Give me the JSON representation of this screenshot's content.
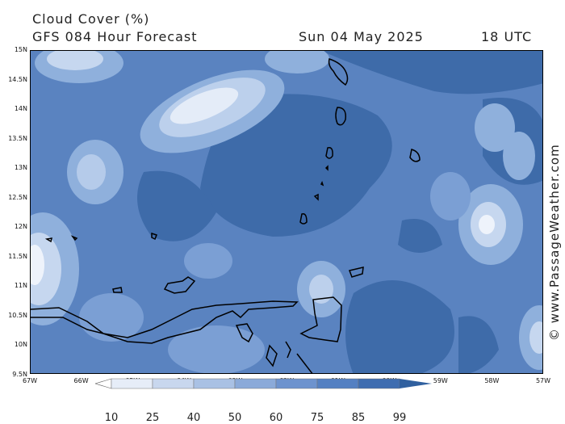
{
  "title": {
    "line1": "Cloud Cover (%)",
    "model": "GFS 084 Hour Forecast",
    "date": "Sun 04 May 2025",
    "time": "18 UTC"
  },
  "axes": {
    "lat_labels": [
      "15N",
      "14.5N",
      "14N",
      "13.5N",
      "13N",
      "12.5N",
      "12N",
      "11.5N",
      "11N",
      "10.5N",
      "10N",
      "9.5N"
    ],
    "lon_labels": [
      "67W",
      "66W",
      "65W",
      "64W",
      "63W",
      "62W",
      "61W",
      "60W",
      "59W",
      "58W",
      "57W"
    ]
  },
  "watermark": "© www.PassageWeather.com",
  "legend": {
    "values": [
      "10",
      "25",
      "40",
      "50",
      "60",
      "75",
      "85",
      "99"
    ],
    "colors": [
      "#ffffff",
      "#e6edf8",
      "#c8d7ee",
      "#a9c1e4",
      "#8baad9",
      "#6d93ce",
      "#5480c2",
      "#3f6db0",
      "#30609f"
    ]
  },
  "map": {
    "base_color": "#5982bf",
    "dark_color": "#3c6aa8",
    "land_color": "#000000"
  }
}
